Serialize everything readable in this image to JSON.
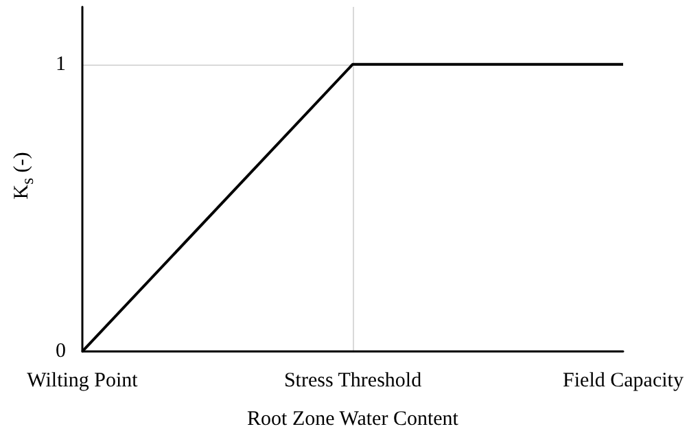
{
  "chart_data": {
    "type": "line",
    "xlabel": "Root Zone Water Content",
    "ylabel": "K$_{s}$ (-)",
    "categories": [
      "Wilting Point",
      "Stress Threshold",
      "Field Capacity"
    ],
    "series": [
      {
        "color": "#000000",
        "values": [
          0,
          1,
          1
        ]
      }
    ],
    "ylim": [
      0,
      1.2
    ],
    "yticks": [
      0,
      1
    ],
    "grid": true,
    "marker": "none",
    "line_style": "solid"
  }
}
